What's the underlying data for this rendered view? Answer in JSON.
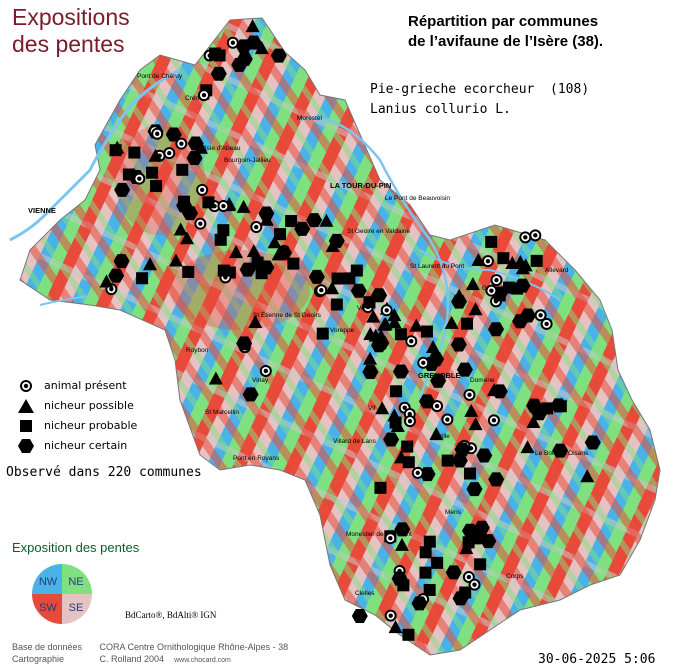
{
  "title": {
    "line1": "Expositions",
    "line2": "des pentes"
  },
  "repartition": {
    "line1": "Répartition par communes",
    "line2": "de l’avifaune de l’Isère (38)."
  },
  "species": {
    "common": "Pie-grieche ecorcheur",
    "count": "(108)",
    "latin": "Lanius collurio L."
  },
  "legend": [
    {
      "symbol": "animal-present",
      "label": "animal présent"
    },
    {
      "symbol": "nicheur-possible",
      "label": "nicheur possible"
    },
    {
      "symbol": "nicheur-probable",
      "label": "nicheur probable"
    },
    {
      "symbol": "nicheur-certain",
      "label": "nicheur certain"
    }
  ],
  "observed": "Observé dans 220 communes",
  "exposition": {
    "title": "Exposition des pentes",
    "quadrants": [
      {
        "label": "NW",
        "color": "#49b3e8"
      },
      {
        "label": "NE",
        "color": "#7fe07f"
      },
      {
        "label": "SW",
        "color": "#e84a3a"
      },
      {
        "label": "SE",
        "color": "#e6c3c3"
      }
    ]
  },
  "bdcarto": "BdCarto®, BdAlti® IGN",
  "credits": {
    "base_label": "Base de données",
    "base_value": "CORA Centre Ornithologique Rhône-Alpes - 38",
    "carto_label": "Cartographie",
    "carto_value": "C. Rolland 2004",
    "website": "www.chocard.com"
  },
  "date": "30-06-2025 5:06",
  "place_labels": [
    "Pont de Chéruy",
    "Crémieu",
    "Morestel",
    "L'Isle d'Abeau",
    "Bourgoin-Jallieu",
    "LA TOUR-DU-PIN",
    "Le Pont de Beauvoisin",
    "VIENNE",
    "St Geoire en Valdaine",
    "St Laurent du Pont",
    "Voiron",
    "St Etienne de St Geoirs",
    "Roybon",
    "Vinay",
    "St Marcellin",
    "Pont en Royans",
    "Voreppe",
    "GRENOBLE",
    "Vif",
    "Villard de Lans",
    "Le Bourg d'Oisans",
    "Mens",
    "Monestier de Clermont",
    "Allevard",
    "Goncelin",
    "Domène",
    "Vizille",
    "Corps",
    "Clelles"
  ],
  "colors": {
    "title": "#7a1c2a",
    "nw": "#49b3e8",
    "ne": "#7fe07f",
    "sw": "#e84a3a",
    "se": "#e6c3c3",
    "flat": "#c8c8c8",
    "river": "#7ec4f0",
    "expo_title": "#0a5e2a"
  }
}
